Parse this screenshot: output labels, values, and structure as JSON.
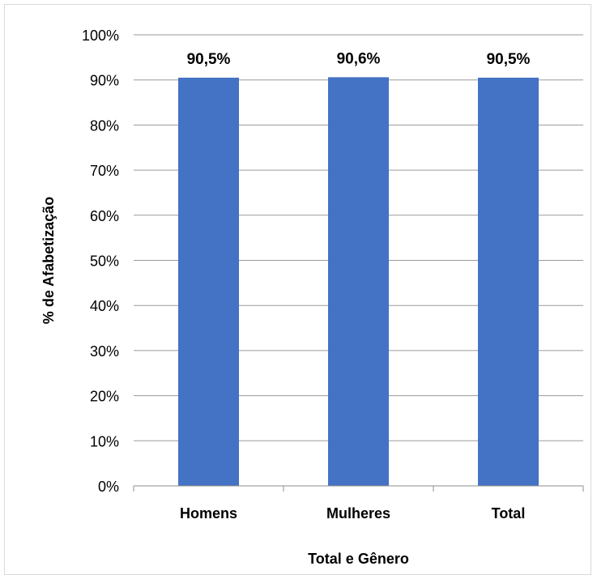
{
  "chart_data": {
    "type": "bar",
    "categories": [
      "Homens",
      "Mulheres",
      "Total"
    ],
    "values": [
      90.5,
      90.6,
      90.5
    ],
    "data_labels": [
      "90,5%",
      "90,6%",
      "90,5%"
    ],
    "ylim": [
      0,
      100
    ],
    "yticks": [
      "0%",
      "10%",
      "20%",
      "30%",
      "40%",
      "50%",
      "60%",
      "70%",
      "80%",
      "90%",
      "100%"
    ],
    "xlabel": "Total e Gênero",
    "ylabel": "% de Afabetização",
    "grid": true,
    "legend": "none",
    "bar_color": "#4472c4"
  }
}
